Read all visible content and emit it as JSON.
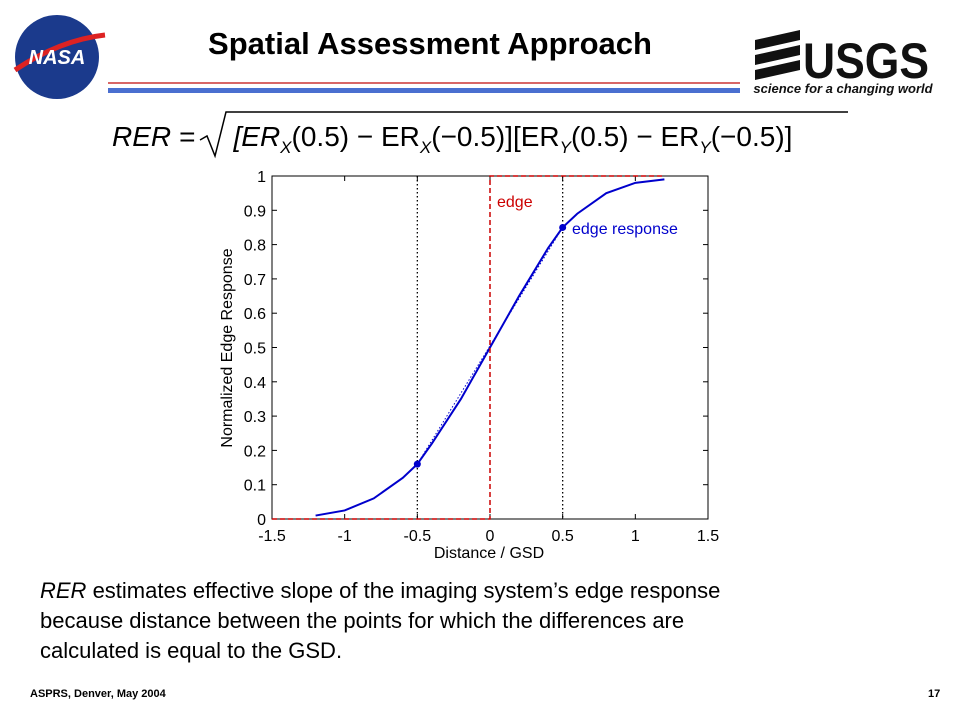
{
  "slide": {
    "title": "Spatial Assessment Approach",
    "nasa_logo": "NASA",
    "usgs_logo": "USGS",
    "usgs_tagline": "science for a changing world",
    "formula": [
      "RER",
      "=",
      "[ER",
      "X",
      "(0.5) − ER",
      "X",
      "(−0.5)][ER",
      "Y",
      "(0.5) − ER",
      "Y",
      "(−0.5)]"
    ],
    "body": {
      "italic": "RER",
      "lines": [
        " estimates effective slope of the imaging system’s edge response",
        "because distance between the points for which the differences are",
        "calculated is equal to the GSD."
      ]
    },
    "footer": "ASPRS, Denver, May 2004",
    "page": "17"
  },
  "chart_data": {
    "type": "line",
    "x_label": "Distance / GSD",
    "y_label": "Normalized Edge Response",
    "xlim": [
      -1.5,
      1.5
    ],
    "ylim": [
      0,
      1
    ],
    "xticks": [
      -1.5,
      -1,
      -0.5,
      0,
      0.5,
      1,
      1.5
    ],
    "yticks": [
      0,
      0.1,
      0.2,
      0.3,
      0.4,
      0.5,
      0.6,
      0.7,
      0.8,
      0.9,
      1
    ],
    "vlines": [
      -0.5,
      0.5
    ],
    "series": [
      {
        "name": "edge response",
        "color": "#0000cc",
        "x": [
          -1.2,
          -1.0,
          -0.8,
          -0.6,
          -0.5,
          -0.4,
          -0.2,
          0,
          0.2,
          0.4,
          0.5,
          0.6,
          0.8,
          1.0,
          1.2
        ],
        "values": [
          0.01,
          0.025,
          0.06,
          0.12,
          0.16,
          0.22,
          0.35,
          0.5,
          0.65,
          0.79,
          0.85,
          0.89,
          0.95,
          0.98,
          0.99
        ]
      },
      {
        "name": "edge",
        "color": "#cc0000",
        "x": [
          -1.5,
          0,
          0,
          1.2
        ],
        "values": [
          0,
          0,
          1,
          1
        ]
      },
      {
        "color": "#0000cc",
        "x": [
          -0.5,
          0.5
        ],
        "values": [
          0.16,
          0.85
        ]
      }
    ]
  }
}
